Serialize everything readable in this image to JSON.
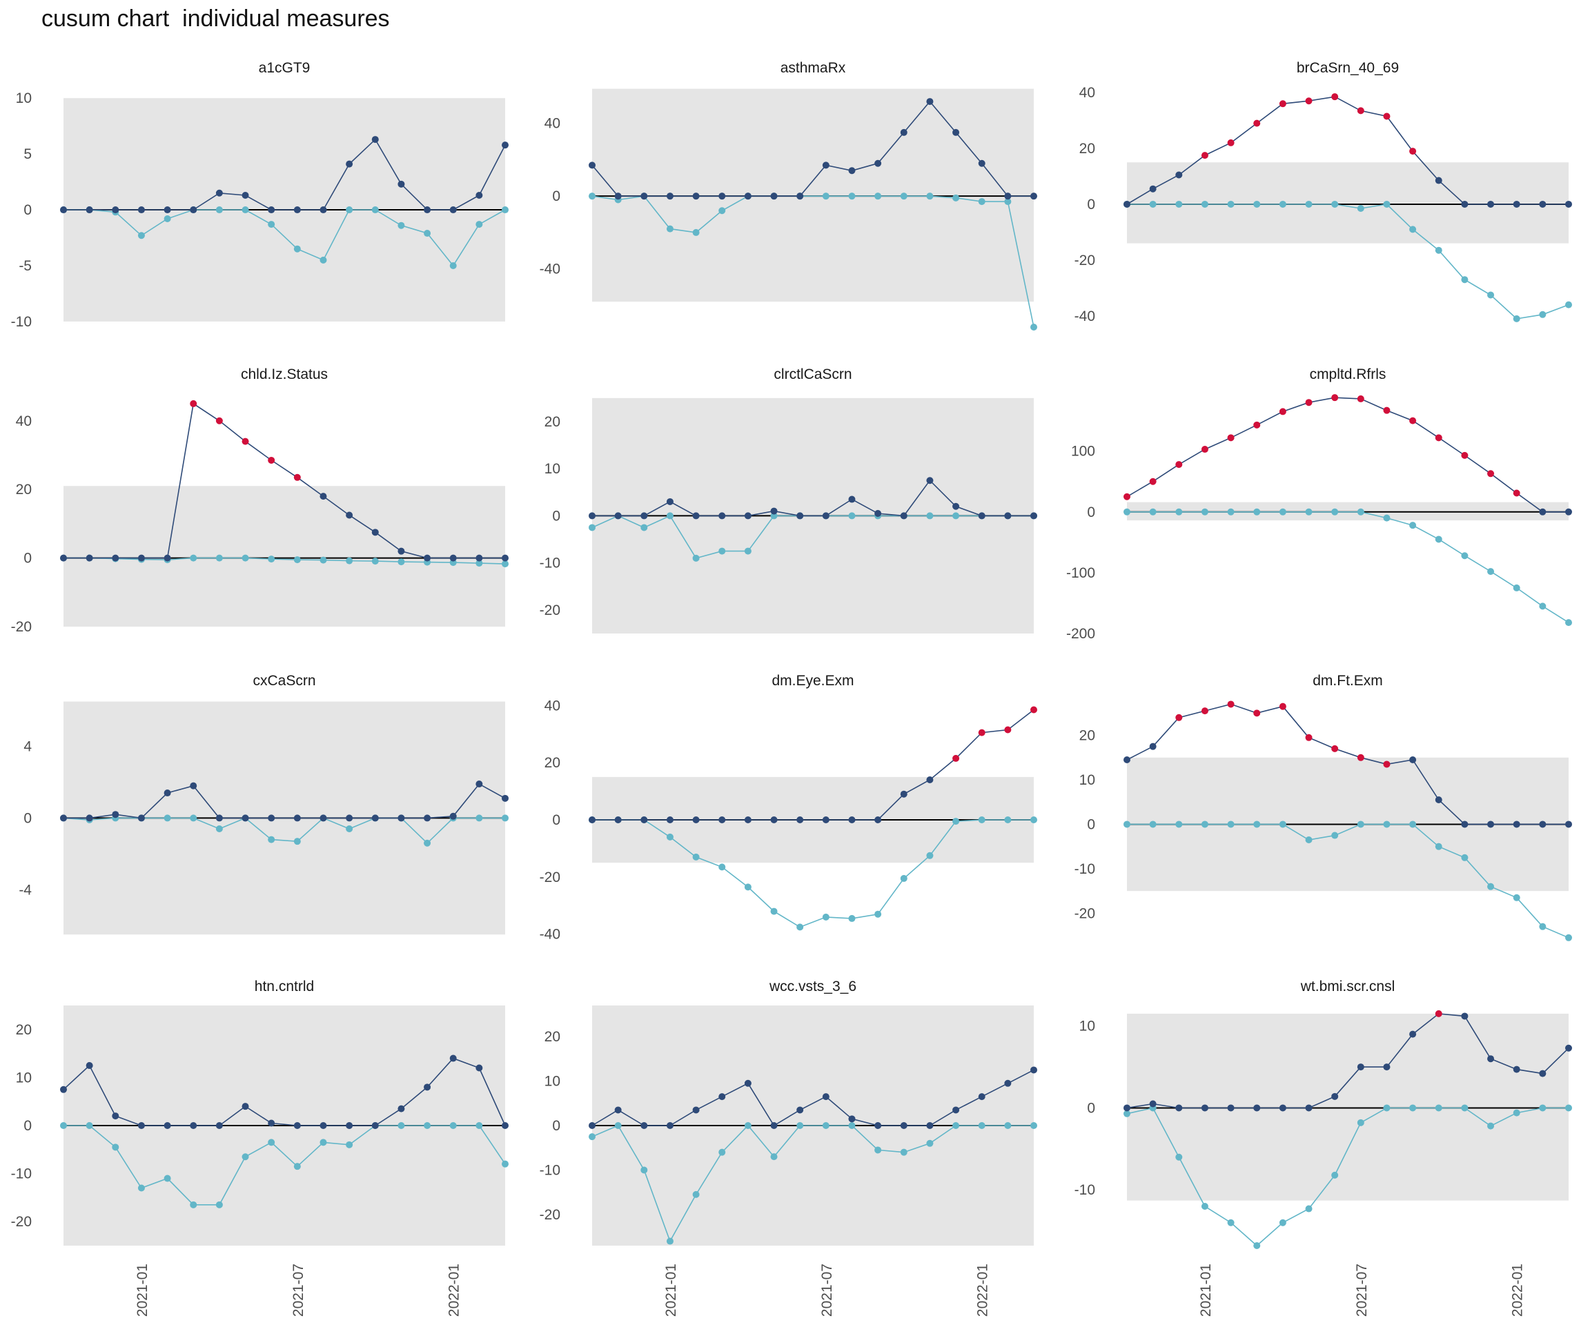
{
  "page_title": "cusum chart  individual measures",
  "colors": {
    "upper": "#2e4a78",
    "lower": "#62b6c8",
    "signal": "#d10f3a",
    "band": "#e5e5e5",
    "zero_line": "#000000"
  },
  "chart_data": {
    "type": "line",
    "x": [
      "2020-10",
      "2020-11",
      "2020-12",
      "2021-01",
      "2021-02",
      "2021-03",
      "2021-04",
      "2021-05",
      "2021-06",
      "2021-07",
      "2021-08",
      "2021-09",
      "2021-10",
      "2021-11",
      "2021-12",
      "2022-01",
      "2022-02",
      "2022-03"
    ],
    "x_tick_labels": [
      {
        "date": "2021-01",
        "label": "2021-01"
      },
      {
        "date": "2021-07",
        "label": "2021-07"
      },
      {
        "date": "2022-01",
        "label": "2022-01"
      }
    ],
    "panels": [
      {
        "title": "a1cGT9",
        "ylim": [
          -10.5,
          11
        ],
        "yticks": [
          -10,
          -5,
          0,
          5,
          10
        ],
        "band": [
          -10,
          10
        ],
        "upper": [
          0,
          0,
          0,
          0,
          0,
          0,
          1.5,
          1.3,
          0,
          0,
          0,
          4.1,
          6.3,
          2.3,
          0,
          0,
          1.3,
          5.8
        ],
        "lower": [
          0,
          0,
          -0.2,
          -2.3,
          -0.8,
          0,
          0,
          0,
          -1.3,
          -3.5,
          -4.5,
          0,
          0,
          -1.4,
          -2.1,
          -5,
          -1.3,
          0
        ],
        "signals": []
      },
      {
        "title": "asthmaRx",
        "ylim": [
          -72,
          60
        ],
        "yticks": [
          -40,
          0,
          40
        ],
        "band": [
          -58,
          59
        ],
        "upper": [
          17,
          0,
          0,
          0,
          0,
          0,
          0,
          0,
          0,
          17,
          14,
          18,
          35,
          52,
          35,
          18,
          0,
          0
        ],
        "lower": [
          0,
          -2,
          0,
          -18,
          -20,
          -8,
          0,
          0,
          0,
          0,
          0,
          0,
          0,
          0,
          -1,
          -3,
          -3,
          -72
        ],
        "signals": []
      },
      {
        "title": "brCaSrn_40_69",
        "ylim": [
          -44,
          42
        ],
        "yticks": [
          -40,
          -20,
          0,
          20,
          40
        ],
        "band": [
          -14,
          15
        ],
        "upper": [
          0,
          5.5,
          10.5,
          17.5,
          22,
          29,
          36,
          37,
          38.5,
          33.5,
          31.5,
          19,
          8.5,
          0,
          0,
          0,
          0,
          0
        ],
        "lower": [
          0,
          0,
          0,
          0,
          0,
          0,
          0,
          0,
          0,
          -1.5,
          0,
          -9,
          -16.5,
          -27,
          -32.5,
          -41,
          -39.5,
          -36
        ],
        "signals": [
          false,
          false,
          false,
          true,
          true,
          true,
          true,
          true,
          true,
          true,
          true,
          true,
          false,
          false,
          false,
          false,
          false,
          false
        ]
      },
      {
        "title": "chld.Iz.Status",
        "ylim": [
          -22,
          48
        ],
        "yticks": [
          -20,
          0,
          20,
          40
        ],
        "band": [
          -20,
          21
        ],
        "upper": [
          0,
          0,
          0,
          0,
          0,
          45,
          40,
          34,
          28.5,
          23.5,
          18,
          12.5,
          7.5,
          2,
          0,
          0,
          0,
          0
        ],
        "lower": [
          0,
          0,
          -0.2,
          -0.4,
          -0.5,
          0,
          0,
          0,
          -0.3,
          -0.5,
          -0.6,
          -0.8,
          -0.9,
          -1.1,
          -1.2,
          -1.3,
          -1.5,
          -1.7
        ],
        "signals": [
          false,
          false,
          false,
          false,
          false,
          true,
          true,
          true,
          true,
          true,
          false,
          false,
          false,
          false,
          false,
          false,
          false,
          false
        ]
      },
      {
        "title": "clrctlCaScrn",
        "ylim": [
          -25,
          26
        ],
        "yticks": [
          -20,
          -10,
          0,
          10,
          20
        ],
        "band": [
          -25,
          25
        ],
        "upper": [
          0,
          0,
          0,
          3,
          0,
          0,
          0,
          1,
          0,
          0,
          3.5,
          0.5,
          0,
          7.5,
          2,
          0,
          0,
          0
        ],
        "lower": [
          -2.5,
          0,
          -2.5,
          0,
          -9,
          -7.5,
          -7.5,
          0,
          0,
          0,
          0,
          0,
          0,
          0,
          0,
          0,
          0,
          0
        ],
        "signals": []
      },
      {
        "title": "cmpltd.Rfrls",
        "ylim": [
          -200,
          195
        ],
        "yticks": [
          -200,
          -100,
          0,
          100
        ],
        "band": [
          -14,
          16
        ],
        "upper": [
          25,
          50,
          78,
          103,
          122,
          143,
          165,
          180,
          188,
          186,
          167,
          150,
          122,
          93,
          63,
          31,
          0,
          0
        ],
        "lower": [
          0,
          0,
          0,
          0,
          0,
          0,
          0,
          0,
          0,
          0,
          -10,
          -22,
          -45,
          -72,
          -98,
          -125,
          -155,
          -182
        ],
        "signals": [
          true,
          true,
          true,
          true,
          true,
          true,
          true,
          true,
          true,
          true,
          true,
          true,
          true,
          true,
          true,
          true,
          false,
          false
        ]
      },
      {
        "title": "cxCaScrn",
        "ylim": [
          -6.8,
          6.6
        ],
        "yticks": [
          -4,
          0,
          4
        ],
        "band": [
          -6.5,
          6.5
        ],
        "upper": [
          0,
          0,
          0.2,
          0,
          1.4,
          1.8,
          0,
          0,
          0,
          0,
          0,
          0,
          0,
          0,
          0,
          0.1,
          1.9,
          1.1
        ],
        "lower": [
          0,
          -0.1,
          0,
          0,
          0,
          0,
          -0.6,
          0,
          -1.2,
          -1.3,
          0,
          -0.6,
          0,
          0,
          -1.4,
          0,
          0,
          0
        ],
        "signals": []
      },
      {
        "title": "dm.Eye.Exm",
        "ylim": [
          -42,
          42
        ],
        "yticks": [
          -40,
          -20,
          0,
          20,
          40
        ],
        "band": [
          -15,
          15
        ],
        "upper": [
          0,
          0,
          0,
          0,
          0,
          0,
          0,
          0,
          0,
          0,
          0,
          0,
          9,
          14,
          21.5,
          30.5,
          31.5,
          38.5
        ],
        "lower": [
          0,
          0,
          0,
          -6,
          -13,
          -16.5,
          -23.5,
          -32,
          -37.5,
          -34,
          -34.5,
          -33,
          -20.5,
          -12.5,
          -0.5,
          0,
          0,
          0
        ],
        "signals": [
          false,
          false,
          false,
          false,
          false,
          false,
          false,
          false,
          false,
          false,
          false,
          false,
          false,
          false,
          true,
          true,
          true,
          true
        ]
      },
      {
        "title": "dm.Ft.Exm",
        "ylim": [
          -26,
          28
        ],
        "yticks": [
          -20,
          -10,
          0,
          10,
          20
        ],
        "band": [
          -15,
          15
        ],
        "upper": [
          14.5,
          17.5,
          24,
          25.5,
          27,
          25,
          26.5,
          19.5,
          17,
          15,
          13.5,
          14.5,
          5.5,
          0,
          0,
          0,
          0,
          0
        ],
        "lower": [
          0,
          0,
          0,
          0,
          0,
          0,
          0,
          -3.5,
          -2.5,
          0,
          0,
          0,
          -5,
          -7.5,
          -14,
          -16.5,
          -23,
          -25.5
        ],
        "signals": [
          false,
          false,
          true,
          true,
          true,
          true,
          true,
          true,
          true,
          true,
          true,
          false,
          false,
          false,
          false,
          false,
          false,
          false
        ]
      },
      {
        "title": "htn.cntrld",
        "ylim": [
          -25,
          25
        ],
        "yticks": [
          -20,
          -10,
          0,
          10,
          20
        ],
        "band": [
          -25,
          25
        ],
        "upper": [
          7.5,
          12.5,
          2,
          0,
          0,
          0,
          0,
          4,
          0.5,
          0,
          0,
          0,
          0,
          3.5,
          8,
          14,
          12,
          0
        ],
        "lower": [
          0,
          0,
          -4.5,
          -13,
          -11,
          -16.5,
          -16.5,
          -6.5,
          -3.5,
          -8.5,
          -3.5,
          -4,
          0,
          0,
          0,
          0,
          0,
          -8
        ],
        "signals": []
      },
      {
        "title": "wcc.vsts_3_6",
        "ylim": [
          -27,
          27
        ],
        "yticks": [
          -20,
          -10,
          0,
          10,
          20
        ],
        "band": [
          -27,
          27
        ],
        "upper": [
          0,
          3.5,
          0,
          0,
          3.5,
          6.5,
          9.5,
          0,
          3.5,
          6.5,
          1.5,
          0,
          0,
          0,
          3.5,
          6.5,
          9.5,
          12.5
        ],
        "lower": [
          -2.5,
          0,
          -10,
          -26,
          -15.5,
          -6,
          0,
          -7,
          0,
          0,
          0,
          -5.5,
          -6,
          -4,
          0,
          0,
          0,
          0
        ],
        "signals": []
      },
      {
        "title": "wt.bmi.scr.cnsl",
        "ylim": [
          -16.8,
          12.5
        ],
        "yticks": [
          -10,
          0,
          10
        ],
        "band": [
          -11.3,
          11.5
        ],
        "upper": [
          0,
          0.5,
          0,
          0,
          0,
          0,
          0,
          0,
          1.4,
          5,
          5,
          9,
          11.5,
          11.2,
          6,
          4.7,
          4.2,
          7.3
        ],
        "lower": [
          -0.7,
          0,
          -6,
          -12,
          -14,
          -16.8,
          -14,
          -12.3,
          -8.2,
          -1.8,
          0,
          0,
          0,
          0,
          -2.2,
          -0.6,
          0,
          0
        ],
        "signals": [
          false,
          false,
          false,
          false,
          false,
          false,
          false,
          false,
          false,
          false,
          false,
          false,
          true,
          false,
          false,
          false,
          false,
          false
        ]
      }
    ]
  }
}
